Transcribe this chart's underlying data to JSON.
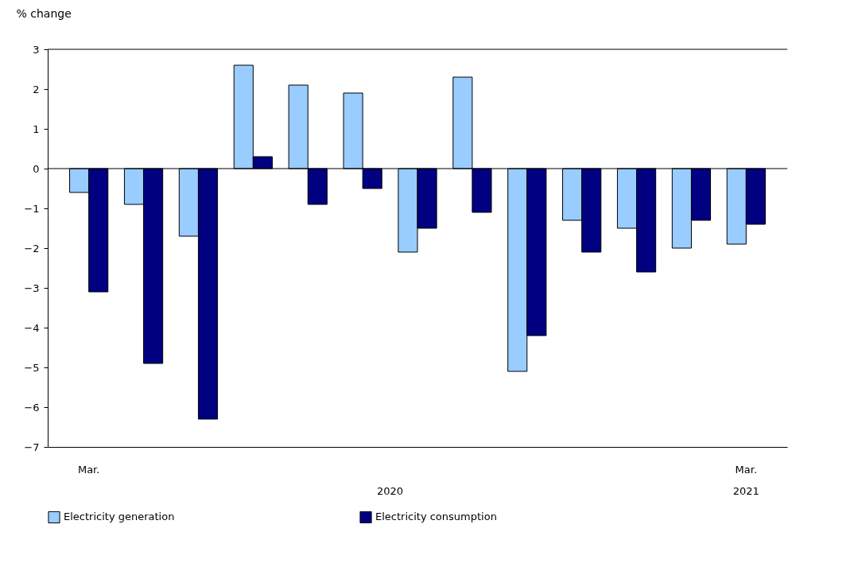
{
  "chart_data": {
    "type": "bar",
    "ylabel": "% change",
    "categories": [
      "Mar.",
      null,
      null,
      null,
      null,
      null,
      null,
      null,
      null,
      null,
      null,
      null,
      "Mar."
    ],
    "series": [
      {
        "name": "Electricity generation",
        "color": "#99ccff",
        "values": [
          -0.6,
          -0.9,
          -1.7,
          2.6,
          2.1,
          1.9,
          -2.1,
          2.3,
          -5.1,
          -1.3,
          -1.5,
          -2.0,
          -1.9
        ]
      },
      {
        "name": "Electricity consumption",
        "color": "#000080",
        "values": [
          -3.1,
          -4.9,
          -6.3,
          0.3,
          -0.9,
          -0.5,
          -1.5,
          -1.1,
          -4.2,
          -2.1,
          -2.6,
          -1.3,
          -1.4
        ]
      }
    ],
    "ylim": [
      -7,
      3
    ],
    "yticks": [
      -7,
      -6,
      -5,
      -4,
      -3,
      -2,
      -1,
      0,
      1,
      2,
      3
    ],
    "ref_lines": [
      {
        "axis": "y",
        "value": 0
      }
    ],
    "annotations": [
      "2020",
      "2021"
    ],
    "legend": "bottom",
    "grid": false
  }
}
